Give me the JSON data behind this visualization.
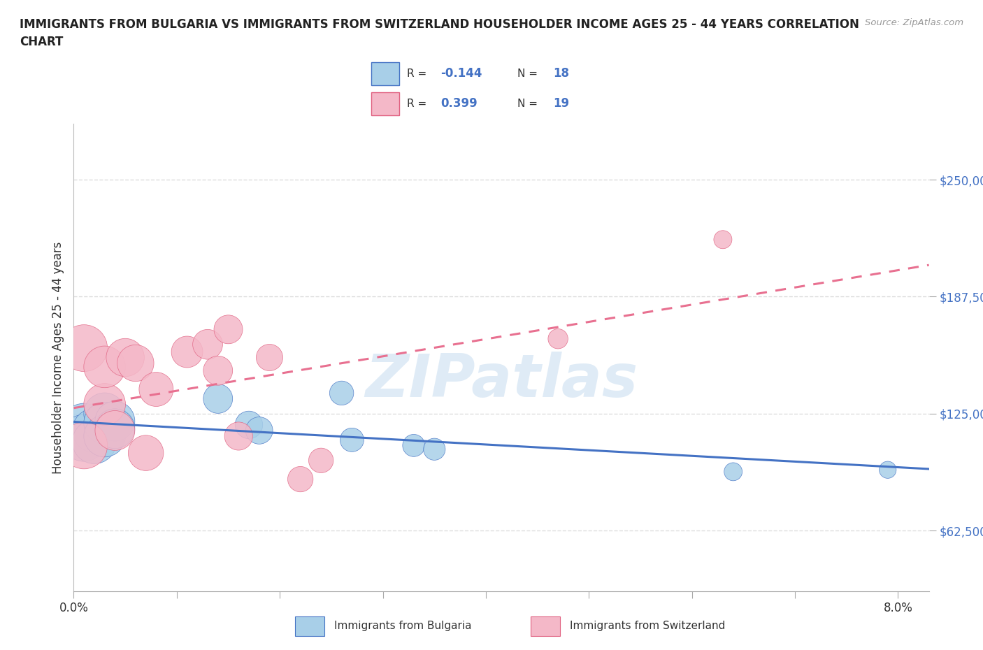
{
  "title_line1": "IMMIGRANTS FROM BULGARIA VS IMMIGRANTS FROM SWITZERLAND HOUSEHOLDER INCOME AGES 25 - 44 YEARS CORRELATION",
  "title_line2": "CHART",
  "source": "Source: ZipAtlas.com",
  "ylabel": "Householder Income Ages 25 - 44 years",
  "xlim": [
    0.0,
    0.083
  ],
  "ylim": [
    30000,
    280000
  ],
  "yticks": [
    62500,
    125000,
    187500,
    250000
  ],
  "ytick_labels": [
    "$62,500",
    "$125,000",
    "$187,500",
    "$250,000"
  ],
  "xticks": [
    0.0,
    0.01,
    0.02,
    0.03,
    0.04,
    0.05,
    0.06,
    0.07,
    0.08
  ],
  "xtick_labels": [
    "0.0%",
    "",
    "",
    "",
    "",
    "",
    "",
    "",
    "8.0%"
  ],
  "bulgaria_color": "#a8cfe8",
  "switzerland_color": "#f4b8c8",
  "bulgaria_edge": "#4472c4",
  "switzerland_edge": "#e06080",
  "trend_blue": "#4472c4",
  "trend_pink": "#e87090",
  "watermark": "ZIPatlas",
  "bg_color": "#ffffff",
  "grid_color": "#dddddd",
  "bulgaria_x": [
    0.001,
    0.001,
    0.002,
    0.002,
    0.003,
    0.003,
    0.003,
    0.004,
    0.004,
    0.014,
    0.017,
    0.018,
    0.026,
    0.027,
    0.033,
    0.035,
    0.064,
    0.079
  ],
  "bulgaria_y": [
    118000,
    112000,
    116000,
    110000,
    125000,
    120000,
    113000,
    121000,
    117000,
    133000,
    119000,
    116000,
    136000,
    111000,
    108000,
    106000,
    94000,
    95000
  ],
  "switzerland_x": [
    0.001,
    0.001,
    0.003,
    0.003,
    0.004,
    0.005,
    0.006,
    0.007,
    0.008,
    0.011,
    0.013,
    0.014,
    0.015,
    0.016,
    0.019,
    0.022,
    0.024,
    0.047,
    0.063
  ],
  "switzerland_y": [
    108000,
    160000,
    130000,
    150000,
    116000,
    155000,
    152000,
    104000,
    138000,
    158000,
    162000,
    148000,
    170000,
    113000,
    155000,
    90000,
    100000,
    165000,
    218000
  ],
  "legend_R_bulgaria": "-0.144",
  "legend_N_bulgaria": "18",
  "legend_R_switzerland": "0.399",
  "legend_N_switzerland": "19"
}
